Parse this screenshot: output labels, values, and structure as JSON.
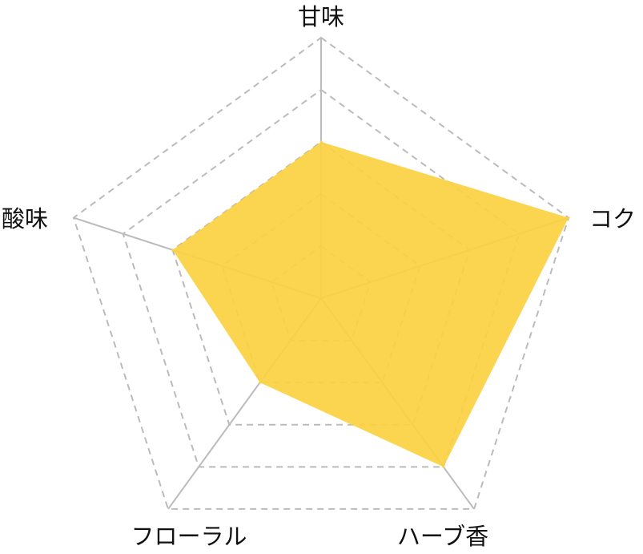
{
  "chart_data": {
    "type": "radar",
    "categories": [
      "甘味",
      "コク",
      "ハーブ香",
      "フローラル",
      "酸味"
    ],
    "series": [
      {
        "values": [
          3,
          5,
          4,
          2,
          3
        ]
      }
    ],
    "range": [
      0,
      5
    ],
    "levels": 5,
    "grid": true,
    "grid_style": "dashed",
    "colors": {
      "fill": "#FCD243",
      "grid": "#BBBBBB",
      "axis": "#BBBBBB",
      "text": "#111111"
    }
  }
}
